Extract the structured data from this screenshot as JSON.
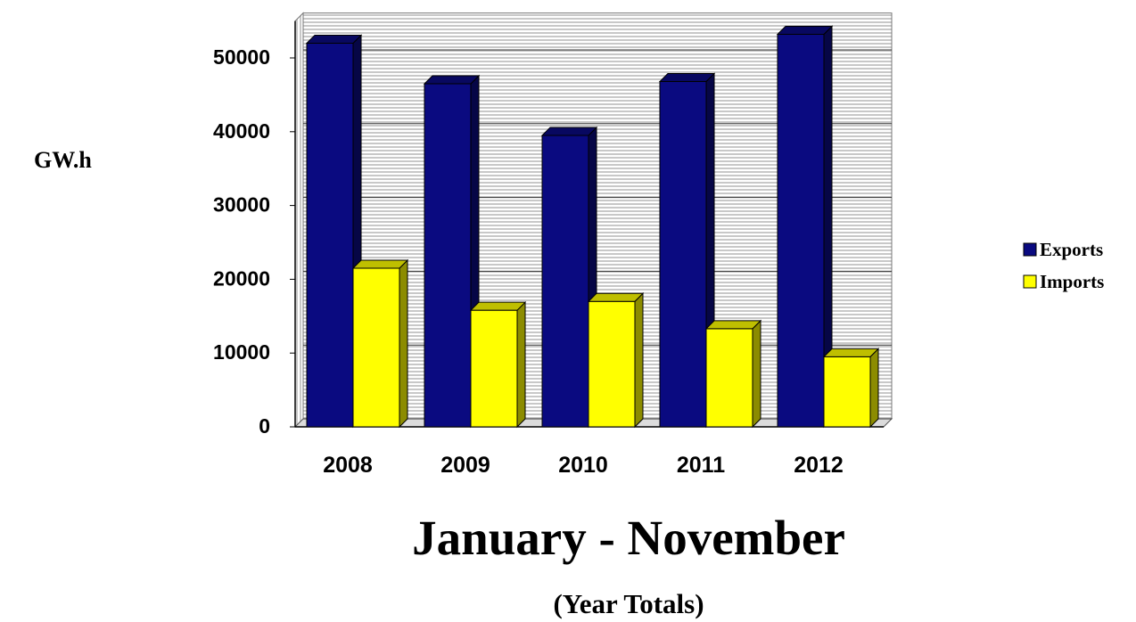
{
  "chart_data": {
    "type": "bar",
    "title": "January - November",
    "subtitle": "(Year Totals)",
    "ylabel": "GW.h",
    "xlabel": "",
    "categories": [
      "2008",
      "2009",
      "2010",
      "2011",
      "2012"
    ],
    "series": [
      {
        "name": "Exports",
        "color": "#0a0a80",
        "values": [
          52000,
          46500,
          39500,
          46800,
          53200
        ]
      },
      {
        "name": "Imports",
        "color": "#ffff00",
        "values": [
          21500,
          15800,
          17000,
          13300,
          9500
        ]
      }
    ],
    "yticks": [
      "0",
      "10000",
      "20000",
      "30000",
      "40000",
      "50000"
    ],
    "ylim": [
      0,
      55000
    ],
    "grid": true,
    "legend_position": "right"
  }
}
